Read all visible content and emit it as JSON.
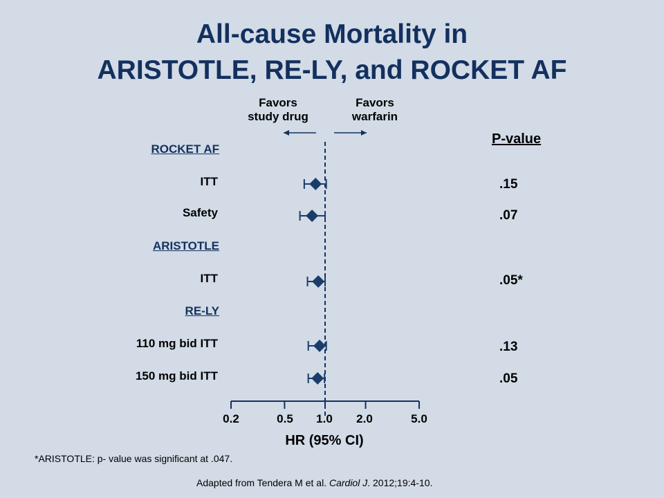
{
  "title_line1": "All-cause Mortality in",
  "title_line2": "ARISTOTLE, RE-LY, and ROCKET AF",
  "favors_left": [
    "Favors",
    "study drug"
  ],
  "favors_right": [
    "Favors",
    "warfarin"
  ],
  "pvalue_header": "P-value",
  "groups": [
    "ROCKET AF",
    "ARISTOTLE",
    "RE-LY"
  ],
  "footnote": "*ARISTOTLE: p- value was significant at .047.",
  "source": {
    "prefix": "Adapted from  Tendera M et al. ",
    "journal": "Cardiol J",
    "suffix": ". 2012;19:4-10."
  },
  "chart_data": {
    "type": "forest",
    "xlabel": "HR (95%  CI)",
    "xscale": "log",
    "xlim": [
      0.2,
      5.0
    ],
    "ticks": [
      "0.2",
      "0.5",
      "1.0",
      "2.0",
      "5.0"
    ],
    "tick_values": [
      0.2,
      0.5,
      1.0,
      2.0,
      5.0
    ],
    "reference_line": 1.0,
    "colors": {
      "marker": "#1b3c6b",
      "axis": "#13305e"
    },
    "rows": [
      {
        "group": "ROCKET AF",
        "label": "ITT",
        "hr": 0.85,
        "lo": 0.7,
        "hi": 1.02,
        "p": ".15"
      },
      {
        "group": "ROCKET AF",
        "label": "Safety",
        "hr": 0.8,
        "lo": 0.65,
        "hi": 1.0,
        "p": ".07"
      },
      {
        "group": "ARISTOTLE",
        "label": "ITT",
        "hr": 0.89,
        "lo": 0.74,
        "hi": 1.0,
        "p": ".05*"
      },
      {
        "group": "RE-LY",
        "label": "110 mg bid ITT",
        "hr": 0.91,
        "lo": 0.75,
        "hi": 1.02,
        "p": ".13"
      },
      {
        "group": "RE-LY",
        "label": "150 mg bid ITT",
        "hr": 0.88,
        "lo": 0.75,
        "hi": 0.99,
        "p": ".05"
      }
    ]
  }
}
